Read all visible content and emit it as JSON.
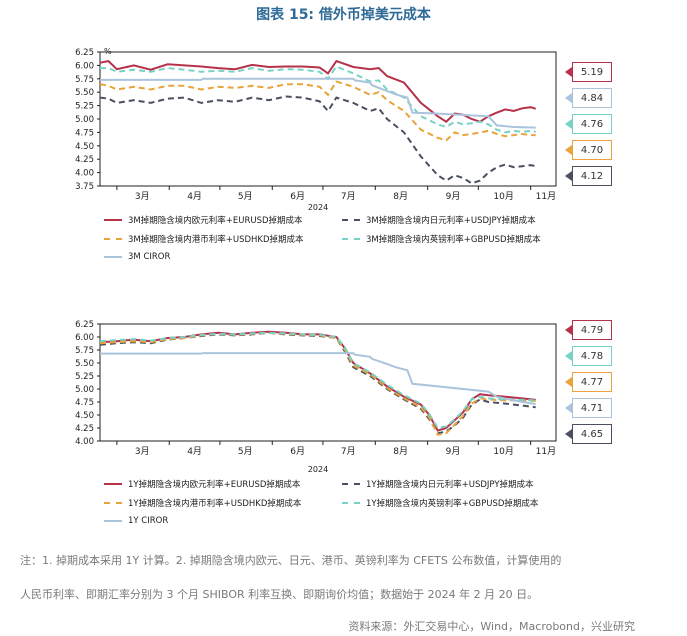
{
  "title": "图表 15: 借外币掉美元成本",
  "note_line1": "注：1. 掉期成本采用 1Y 计算。2. 掉期隐含境内欧元、日元、港币、英镑利率为 CFETS 公布数值，计算使用的",
  "note_line2": "人民币利率、即期汇率分别为 3 个月 SHIBOR 利率互换、即期询价均值；数据始于 2024 年 2 月 20 日。",
  "source": "资料来源：外汇交易中心，Wind，Macrobond，兴业研究",
  "colors": {
    "eur": "#b5324a",
    "jpy": "#4a5060",
    "hkd": "#e8a33a",
    "gbp": "#78d2c6",
    "cir": "#a9c4dc"
  },
  "chart_data": [
    {
      "type": "line",
      "unit_label": "%",
      "year_label": "2024",
      "ylim": [
        3.75,
        6.25
      ],
      "yticks": [
        "6.25",
        "6.00",
        "5.75",
        "5.50",
        "5.25",
        "5.00",
        "4.75",
        "4.50",
        "4.25",
        "4.00",
        "3.75"
      ],
      "xlim": [
        0,
        270
      ],
      "month_labels": [
        "3月",
        "4月",
        "5月",
        "6月",
        "7月",
        "8月",
        "9月",
        "10月",
        "11月"
      ],
      "month_tick_days": [
        10,
        41,
        71,
        102,
        132,
        163,
        194,
        224,
        255
      ],
      "month_label_days": [
        25,
        56,
        86,
        117,
        147,
        178,
        209,
        239,
        264
      ],
      "series": [
        {
          "name": "3M掉期隐含境内欧元利率+EURUSD掉期成本",
          "color": "eur",
          "dash": "",
          "x": [
            0,
            5,
            10,
            20,
            30,
            40,
            50,
            60,
            70,
            80,
            90,
            100,
            110,
            120,
            130,
            135,
            140,
            150,
            160,
            165,
            170,
            180,
            190,
            200,
            205,
            210,
            215,
            220,
            225,
            230,
            235,
            240,
            245,
            250,
            255,
            258
          ],
          "y": [
            6.05,
            6.08,
            5.93,
            6.0,
            5.92,
            6.02,
            6.0,
            5.98,
            5.95,
            5.93,
            6.01,
            5.97,
            5.98,
            5.98,
            5.96,
            5.85,
            6.08,
            5.97,
            5.93,
            5.95,
            5.8,
            5.68,
            5.3,
            5.05,
            4.95,
            5.1,
            5.08,
            5.0,
            4.95,
            5.05,
            5.12,
            5.18,
            5.15,
            5.2,
            5.22,
            5.19
          ]
        },
        {
          "name": "3M掉期隐含境内日元利率+USDJPY掉期成本",
          "color": "jpy",
          "dash": "6,4",
          "x": [
            0,
            5,
            10,
            20,
            30,
            40,
            50,
            60,
            70,
            80,
            90,
            100,
            110,
            120,
            130,
            135,
            140,
            150,
            160,
            165,
            170,
            180,
            190,
            200,
            205,
            210,
            215,
            220,
            225,
            230,
            235,
            240,
            245,
            250,
            255,
            258
          ],
          "y": [
            5.4,
            5.38,
            5.3,
            5.35,
            5.3,
            5.38,
            5.4,
            5.3,
            5.35,
            5.32,
            5.4,
            5.35,
            5.42,
            5.4,
            5.33,
            5.15,
            5.4,
            5.3,
            5.15,
            5.2,
            5.0,
            4.75,
            4.3,
            3.95,
            3.85,
            3.95,
            3.9,
            3.8,
            3.85,
            4.0,
            4.1,
            4.15,
            4.1,
            4.12,
            4.14,
            4.12
          ]
        },
        {
          "name": "3M掉期隐含境内港币利率+USDHKD掉期成本",
          "color": "hkd",
          "dash": "6,4",
          "x": [
            0,
            5,
            10,
            20,
            30,
            40,
            50,
            60,
            70,
            80,
            90,
            100,
            110,
            120,
            130,
            135,
            140,
            150,
            160,
            165,
            170,
            180,
            190,
            200,
            205,
            210,
            215,
            220,
            225,
            230,
            235,
            240,
            245,
            250,
            255,
            258
          ],
          "y": [
            5.65,
            5.62,
            5.55,
            5.6,
            5.55,
            5.62,
            5.62,
            5.55,
            5.6,
            5.58,
            5.62,
            5.58,
            5.65,
            5.65,
            5.6,
            5.45,
            5.7,
            5.6,
            5.45,
            5.5,
            5.35,
            5.15,
            4.8,
            4.65,
            4.6,
            4.75,
            4.7,
            4.72,
            4.75,
            4.78,
            4.72,
            4.68,
            4.7,
            4.72,
            4.7,
            4.7
          ]
        },
        {
          "name": "3M掉期隐含境内英镑利率+GBPUSD掉期成本",
          "color": "gbp",
          "dash": "6,4",
          "x": [
            0,
            5,
            10,
            20,
            30,
            40,
            50,
            60,
            70,
            80,
            90,
            100,
            110,
            120,
            130,
            135,
            140,
            150,
            160,
            165,
            170,
            180,
            190,
            200,
            205,
            210,
            215,
            220,
            225,
            230,
            235,
            240,
            245,
            250,
            255,
            258
          ],
          "y": [
            5.95,
            5.95,
            5.88,
            5.92,
            5.88,
            5.95,
            5.92,
            5.88,
            5.9,
            5.88,
            5.95,
            5.9,
            5.93,
            5.92,
            5.88,
            5.75,
            5.98,
            5.85,
            5.7,
            5.72,
            5.55,
            5.4,
            5.05,
            4.9,
            4.85,
            4.95,
            4.9,
            4.92,
            4.95,
            4.9,
            4.8,
            4.75,
            4.78,
            4.76,
            4.78,
            4.76
          ]
        },
        {
          "name": "3M CIROR",
          "color": "cir",
          "dash": "",
          "x": [
            0,
            60,
            61,
            150,
            151,
            160,
            161,
            170,
            175,
            182,
            185,
            200,
            230,
            235,
            245,
            258
          ],
          "y": [
            5.73,
            5.73,
            5.75,
            5.75,
            5.72,
            5.68,
            5.63,
            5.52,
            5.46,
            5.4,
            5.12,
            5.1,
            5.05,
            4.88,
            4.85,
            4.84
          ]
        }
      ],
      "end_tags": [
        {
          "value": "5.19",
          "color": "eur"
        },
        {
          "value": "4.84",
          "color": "cir"
        },
        {
          "value": "4.76",
          "color": "gbp"
        },
        {
          "value": "4.70",
          "color": "hkd"
        },
        {
          "value": "4.12",
          "color": "jpy"
        }
      ]
    },
    {
      "type": "line",
      "year_label": "2024",
      "ylim": [
        4.0,
        6.25
      ],
      "yticks": [
        "6.25",
        "6.00",
        "5.75",
        "5.50",
        "5.25",
        "5.00",
        "4.75",
        "4.50",
        "4.25",
        "4.00"
      ],
      "xlim": [
        0,
        270
      ],
      "month_labels": [
        "3月",
        "4月",
        "5月",
        "6月",
        "7月",
        "8月",
        "9月",
        "10月",
        "11月"
      ],
      "month_tick_days": [
        10,
        41,
        71,
        102,
        132,
        163,
        194,
        224,
        255
      ],
      "month_label_days": [
        25,
        56,
        86,
        117,
        147,
        178,
        209,
        239,
        264
      ],
      "series": [
        {
          "name": "1Y掉期隐含境内欧元利率+EURUSD掉期成本",
          "color": "eur",
          "dash": "",
          "x": [
            0,
            10,
            20,
            30,
            40,
            50,
            60,
            70,
            80,
            90,
            100,
            110,
            120,
            130,
            140,
            145,
            150,
            160,
            170,
            180,
            190,
            195,
            200,
            205,
            210,
            215,
            220,
            225,
            230,
            240,
            250,
            258
          ],
          "y": [
            5.9,
            5.92,
            5.95,
            5.92,
            5.98,
            6.0,
            6.05,
            6.08,
            6.05,
            6.08,
            6.1,
            6.08,
            6.05,
            6.05,
            6.0,
            5.78,
            5.5,
            5.3,
            5.05,
            4.85,
            4.7,
            4.5,
            4.2,
            4.25,
            4.4,
            4.55,
            4.8,
            4.9,
            4.88,
            4.85,
            4.82,
            4.79
          ]
        },
        {
          "name": "1Y掉期隐含境内日元利率+USDJPY掉期成本",
          "color": "jpy",
          "dash": "6,4",
          "x": [
            0,
            10,
            20,
            30,
            40,
            50,
            60,
            70,
            80,
            90,
            100,
            110,
            120,
            130,
            140,
            145,
            150,
            160,
            170,
            180,
            190,
            195,
            200,
            205,
            210,
            215,
            220,
            225,
            230,
            240,
            250,
            258
          ],
          "y": [
            5.85,
            5.88,
            5.9,
            5.88,
            5.95,
            5.98,
            6.02,
            6.05,
            6.03,
            6.05,
            6.08,
            6.05,
            6.03,
            6.02,
            5.98,
            5.72,
            5.42,
            5.25,
            5.0,
            4.8,
            4.62,
            4.42,
            4.15,
            4.18,
            4.3,
            4.45,
            4.7,
            4.8,
            4.75,
            4.72,
            4.68,
            4.65
          ]
        },
        {
          "name": "1Y掉期隐含境内港币利率+USDHKD掉期成本",
          "color": "hkd",
          "dash": "6,4",
          "x": [
            0,
            10,
            20,
            30,
            40,
            50,
            60,
            70,
            80,
            90,
            100,
            110,
            120,
            130,
            140,
            145,
            150,
            160,
            170,
            180,
            190,
            195,
            200,
            205,
            210,
            215,
            220,
            225,
            230,
            240,
            250,
            258
          ],
          "y": [
            5.88,
            5.9,
            5.92,
            5.9,
            5.96,
            5.98,
            6.03,
            6.06,
            6.04,
            6.06,
            6.08,
            6.06,
            6.04,
            6.03,
            5.98,
            5.75,
            5.45,
            5.28,
            5.02,
            4.82,
            4.65,
            4.45,
            4.12,
            4.15,
            4.32,
            4.48,
            4.72,
            4.82,
            4.8,
            4.78,
            4.78,
            4.77
          ]
        },
        {
          "name": "1Y掉期隐含境内英镑利率+GBPUSD掉期成本",
          "color": "gbp",
          "dash": "6,4",
          "x": [
            0,
            10,
            20,
            30,
            40,
            50,
            60,
            70,
            80,
            90,
            100,
            110,
            120,
            130,
            140,
            145,
            150,
            160,
            170,
            180,
            190,
            195,
            200,
            205,
            210,
            215,
            220,
            225,
            230,
            240,
            250,
            258
          ],
          "y": [
            5.92,
            5.94,
            5.96,
            5.93,
            5.98,
            6.0,
            6.04,
            6.06,
            6.05,
            6.07,
            6.08,
            6.07,
            6.05,
            6.04,
            6.0,
            5.8,
            5.5,
            5.32,
            5.08,
            4.88,
            4.72,
            4.52,
            4.25,
            4.28,
            4.42,
            4.58,
            4.8,
            4.85,
            4.82,
            4.8,
            4.79,
            4.78
          ]
        },
        {
          "name": "1Y CIROR",
          "color": "cir",
          "dash": "",
          "x": [
            0,
            60,
            61,
            150,
            151,
            160,
            161,
            170,
            175,
            182,
            185,
            200,
            230,
            235,
            245,
            258
          ],
          "y": [
            5.68,
            5.68,
            5.69,
            5.69,
            5.66,
            5.62,
            5.58,
            5.48,
            5.42,
            5.36,
            5.1,
            5.05,
            4.95,
            4.85,
            4.78,
            4.71
          ]
        }
      ],
      "end_tags": [
        {
          "value": "4.79",
          "color": "eur"
        },
        {
          "value": "4.78",
          "color": "gbp"
        },
        {
          "value": "4.77",
          "color": "hkd"
        },
        {
          "value": "4.71",
          "color": "cir"
        },
        {
          "value": "4.65",
          "color": "jpy"
        }
      ]
    }
  ]
}
